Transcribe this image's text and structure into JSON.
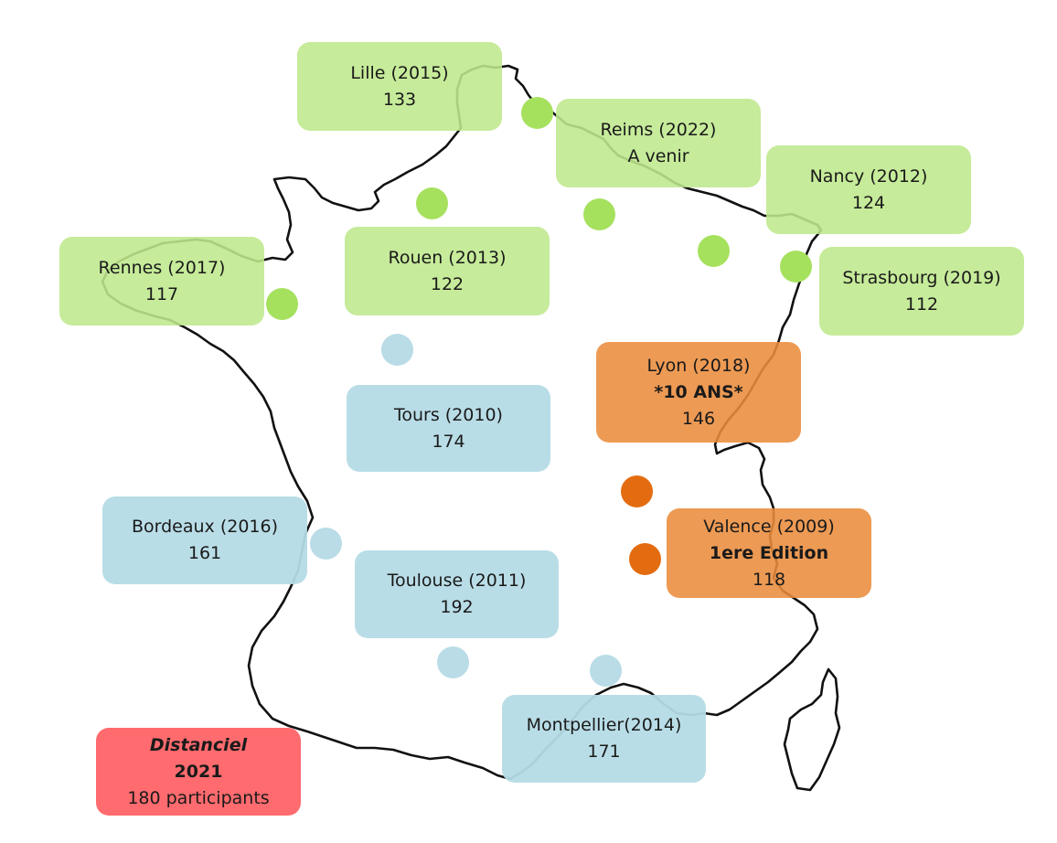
{
  "colors": {
    "green_box": "#bee88c",
    "green_dot": "#a6e15e",
    "blue_box": "#b5dbe6",
    "blue_dot": "#b9dce7",
    "orange_box": "#eb8c3c",
    "orange_dot": "#e46c10",
    "red_box": "#ff6b6e",
    "outline": "#111111"
  },
  "cities": {
    "lille": {
      "title": "Lille (2015)",
      "value": "133"
    },
    "reims": {
      "title": "Reims (2022)",
      "value": "A venir"
    },
    "nancy": {
      "title": "Nancy (2012)",
      "value": "124"
    },
    "rennes": {
      "title": "Rennes (2017)",
      "value": "117"
    },
    "rouen": {
      "title": "Rouen (2013)",
      "value": "122"
    },
    "strasbourg": {
      "title": "Strasbourg (2019)",
      "value": "112"
    },
    "lyon": {
      "title": "Lyon (2018)",
      "note": "*10 ANS*",
      "value": "146"
    },
    "tours": {
      "title": "Tours (2010)",
      "value": "174"
    },
    "bordeaux": {
      "title": "Bordeaux (2016)",
      "value": "161"
    },
    "valence": {
      "title": "Valence (2009)",
      "note": "1ere Edition",
      "value": "118"
    },
    "toulouse": {
      "title": "Toulouse (2011)",
      "value": "192"
    },
    "montpellier": {
      "title": "Montpellier(2014)",
      "value": "171"
    }
  },
  "distanciel": {
    "label_italic": "Distanciel",
    "year": "2021",
    "participants": "180 participants"
  }
}
